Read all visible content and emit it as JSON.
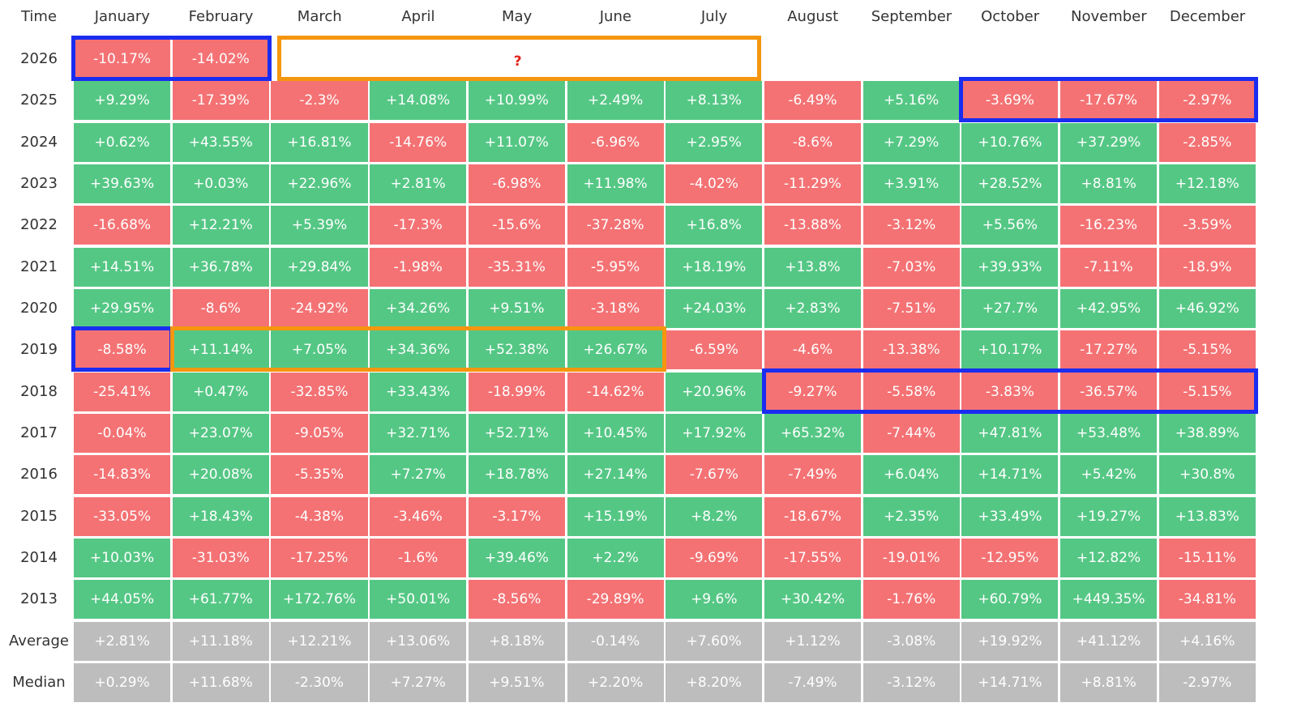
{
  "table": {
    "header": [
      "Time",
      "January",
      "February",
      "March",
      "April",
      "May",
      "June",
      "July",
      "August",
      "September",
      "October",
      "November",
      "December"
    ],
    "rows": [
      {
        "label": "2026",
        "cells": [
          "-10.17%",
          "-14.02%"
        ]
      },
      {
        "label": "2025",
        "cells": [
          "+9.29%",
          "-17.39%",
          "-2.3%",
          "+14.08%",
          "+10.99%",
          "+2.49%",
          "+8.13%",
          "-6.49%",
          "+5.16%",
          "-3.69%",
          "-17.67%",
          "-2.97%"
        ]
      },
      {
        "label": "2024",
        "cells": [
          "+0.62%",
          "+43.55%",
          "+16.81%",
          "-14.76%",
          "+11.07%",
          "-6.96%",
          "+2.95%",
          "-8.6%",
          "+7.29%",
          "+10.76%",
          "+37.29%",
          "-2.85%"
        ]
      },
      {
        "label": "2023",
        "cells": [
          "+39.63%",
          "+0.03%",
          "+22.96%",
          "+2.81%",
          "-6.98%",
          "+11.98%",
          "-4.02%",
          "-11.29%",
          "+3.91%",
          "+28.52%",
          "+8.81%",
          "+12.18%"
        ]
      },
      {
        "label": "2022",
        "cells": [
          "-16.68%",
          "+12.21%",
          "+5.39%",
          "-17.3%",
          "-15.6%",
          "-37.28%",
          "+16.8%",
          "-13.88%",
          "-3.12%",
          "+5.56%",
          "-16.23%",
          "-3.59%"
        ]
      },
      {
        "label": "2021",
        "cells": [
          "+14.51%",
          "+36.78%",
          "+29.84%",
          "-1.98%",
          "-35.31%",
          "-5.95%",
          "+18.19%",
          "+13.8%",
          "-7.03%",
          "+39.93%",
          "-7.11%",
          "-18.9%"
        ]
      },
      {
        "label": "2020",
        "cells": [
          "+29.95%",
          "-8.6%",
          "-24.92%",
          "+34.26%",
          "+9.51%",
          "-3.18%",
          "+24.03%",
          "+2.83%",
          "-7.51%",
          "+27.7%",
          "+42.95%",
          "+46.92%"
        ]
      },
      {
        "label": "2019",
        "cells": [
          "-8.58%",
          "+11.14%",
          "+7.05%",
          "+34.36%",
          "+52.38%",
          "+26.67%",
          "-6.59%",
          "-4.6%",
          "-13.38%",
          "+10.17%",
          "-17.27%",
          "-5.15%"
        ]
      },
      {
        "label": "2018",
        "cells": [
          "-25.41%",
          "+0.47%",
          "-32.85%",
          "+33.43%",
          "-18.99%",
          "-14.62%",
          "+20.96%",
          "-9.27%",
          "-5.58%",
          "-3.83%",
          "-36.57%",
          "-5.15%"
        ]
      },
      {
        "label": "2017",
        "cells": [
          "-0.04%",
          "+23.07%",
          "-9.05%",
          "+32.71%",
          "+52.71%",
          "+10.45%",
          "+17.92%",
          "+65.32%",
          "-7.44%",
          "+47.81%",
          "+53.48%",
          "+38.89%"
        ]
      },
      {
        "label": "2016",
        "cells": [
          "-14.83%",
          "+20.08%",
          "-5.35%",
          "+7.27%",
          "+18.78%",
          "+27.14%",
          "-7.67%",
          "-7.49%",
          "+6.04%",
          "+14.71%",
          "+5.42%",
          "+30.8%"
        ]
      },
      {
        "label": "2015",
        "cells": [
          "-33.05%",
          "+18.43%",
          "-4.38%",
          "-3.46%",
          "-3.17%",
          "+15.19%",
          "+8.2%",
          "-18.67%",
          "+2.35%",
          "+33.49%",
          "+19.27%",
          "+13.83%"
        ]
      },
      {
        "label": "2014",
        "cells": [
          "+10.03%",
          "-31.03%",
          "-17.25%",
          "-1.6%",
          "+39.46%",
          "+2.2%",
          "-9.69%",
          "-17.55%",
          "-19.01%",
          "-12.95%",
          "+12.82%",
          "-15.11%"
        ]
      },
      {
        "label": "2013",
        "cells": [
          "+44.05%",
          "+61.77%",
          "+172.76%",
          "+50.01%",
          "-8.56%",
          "-29.89%",
          "+9.6%",
          "+30.42%",
          "-1.76%",
          "+60.79%",
          "+449.35%",
          "-34.81%"
        ]
      }
    ],
    "summary": [
      {
        "label": "Average",
        "cells": [
          "+2.81%",
          "+11.18%",
          "+12.21%",
          "+13.06%",
          "+8.18%",
          "-0.14%",
          "+7.60%",
          "+1.12%",
          "-3.08%",
          "+19.92%",
          "+41.12%",
          "+4.16%"
        ]
      },
      {
        "label": "Median",
        "cells": [
          "+0.29%",
          "+11.68%",
          "-2.30%",
          "+7.27%",
          "+9.51%",
          "+2.20%",
          "+8.20%",
          "-7.49%",
          "-3.12%",
          "+14.71%",
          "+8.81%",
          "-2.97%"
        ]
      }
    ],
    "colors": {
      "up": "#55c785",
      "down": "#f47274",
      "summary": "#bdbdbd"
    }
  },
  "annotation": "?"
}
